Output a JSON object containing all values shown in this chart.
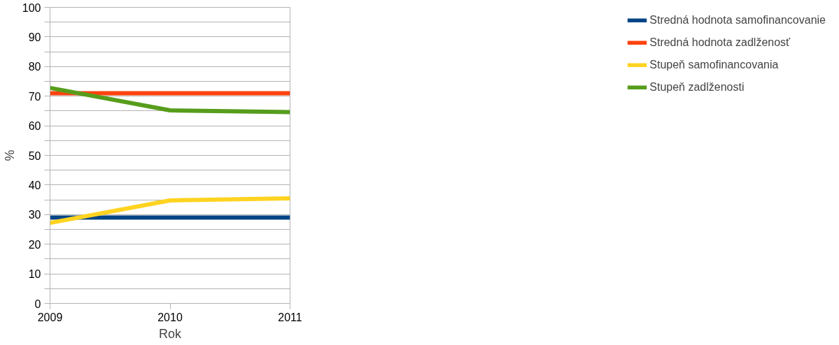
{
  "chart_data": {
    "type": "line",
    "xlabel": "Rok",
    "ylabel": "%",
    "x": [
      2009,
      2010,
      2011
    ],
    "xlim": [
      2009,
      2011
    ],
    "xticks": [
      2009,
      2010,
      2011
    ],
    "ylim": [
      0,
      100
    ],
    "yticks": [
      0,
      {
        "value": 5,
        "label": null
      },
      10,
      {
        "value": 15,
        "label": null
      },
      20,
      {
        "value": 25,
        "label": null
      },
      30,
      {
        "value": 35,
        "label": null
      },
      40,
      {
        "value": 45,
        "label": null
      },
      50,
      {
        "value": 55,
        "label": null
      },
      60,
      {
        "value": 65,
        "label": null
      },
      70,
      {
        "value": 75,
        "label": null
      },
      80,
      {
        "value": 85,
        "label": null
      },
      90,
      {
        "value": 95,
        "label": null
      },
      100
    ],
    "grid": "y",
    "legend": "right",
    "marker": "none",
    "line_style": "solid",
    "series": [
      {
        "name": "Stredná hodnota samofinancovanie",
        "color": "#004586",
        "values": [
          29,
          29,
          29
        ]
      },
      {
        "name": "Stredná hodnota zadlženosť",
        "color": "#ff420e",
        "values": [
          71,
          71,
          71
        ]
      },
      {
        "name": "Stupeň samofinancovania",
        "color": "#ffd320",
        "values": [
          27.2,
          34.8,
          35.5
        ]
      },
      {
        "name": "Stupeň zadlženosti",
        "color": "#579d1c",
        "values": [
          72.8,
          65.2,
          64.6
        ]
      }
    ]
  }
}
